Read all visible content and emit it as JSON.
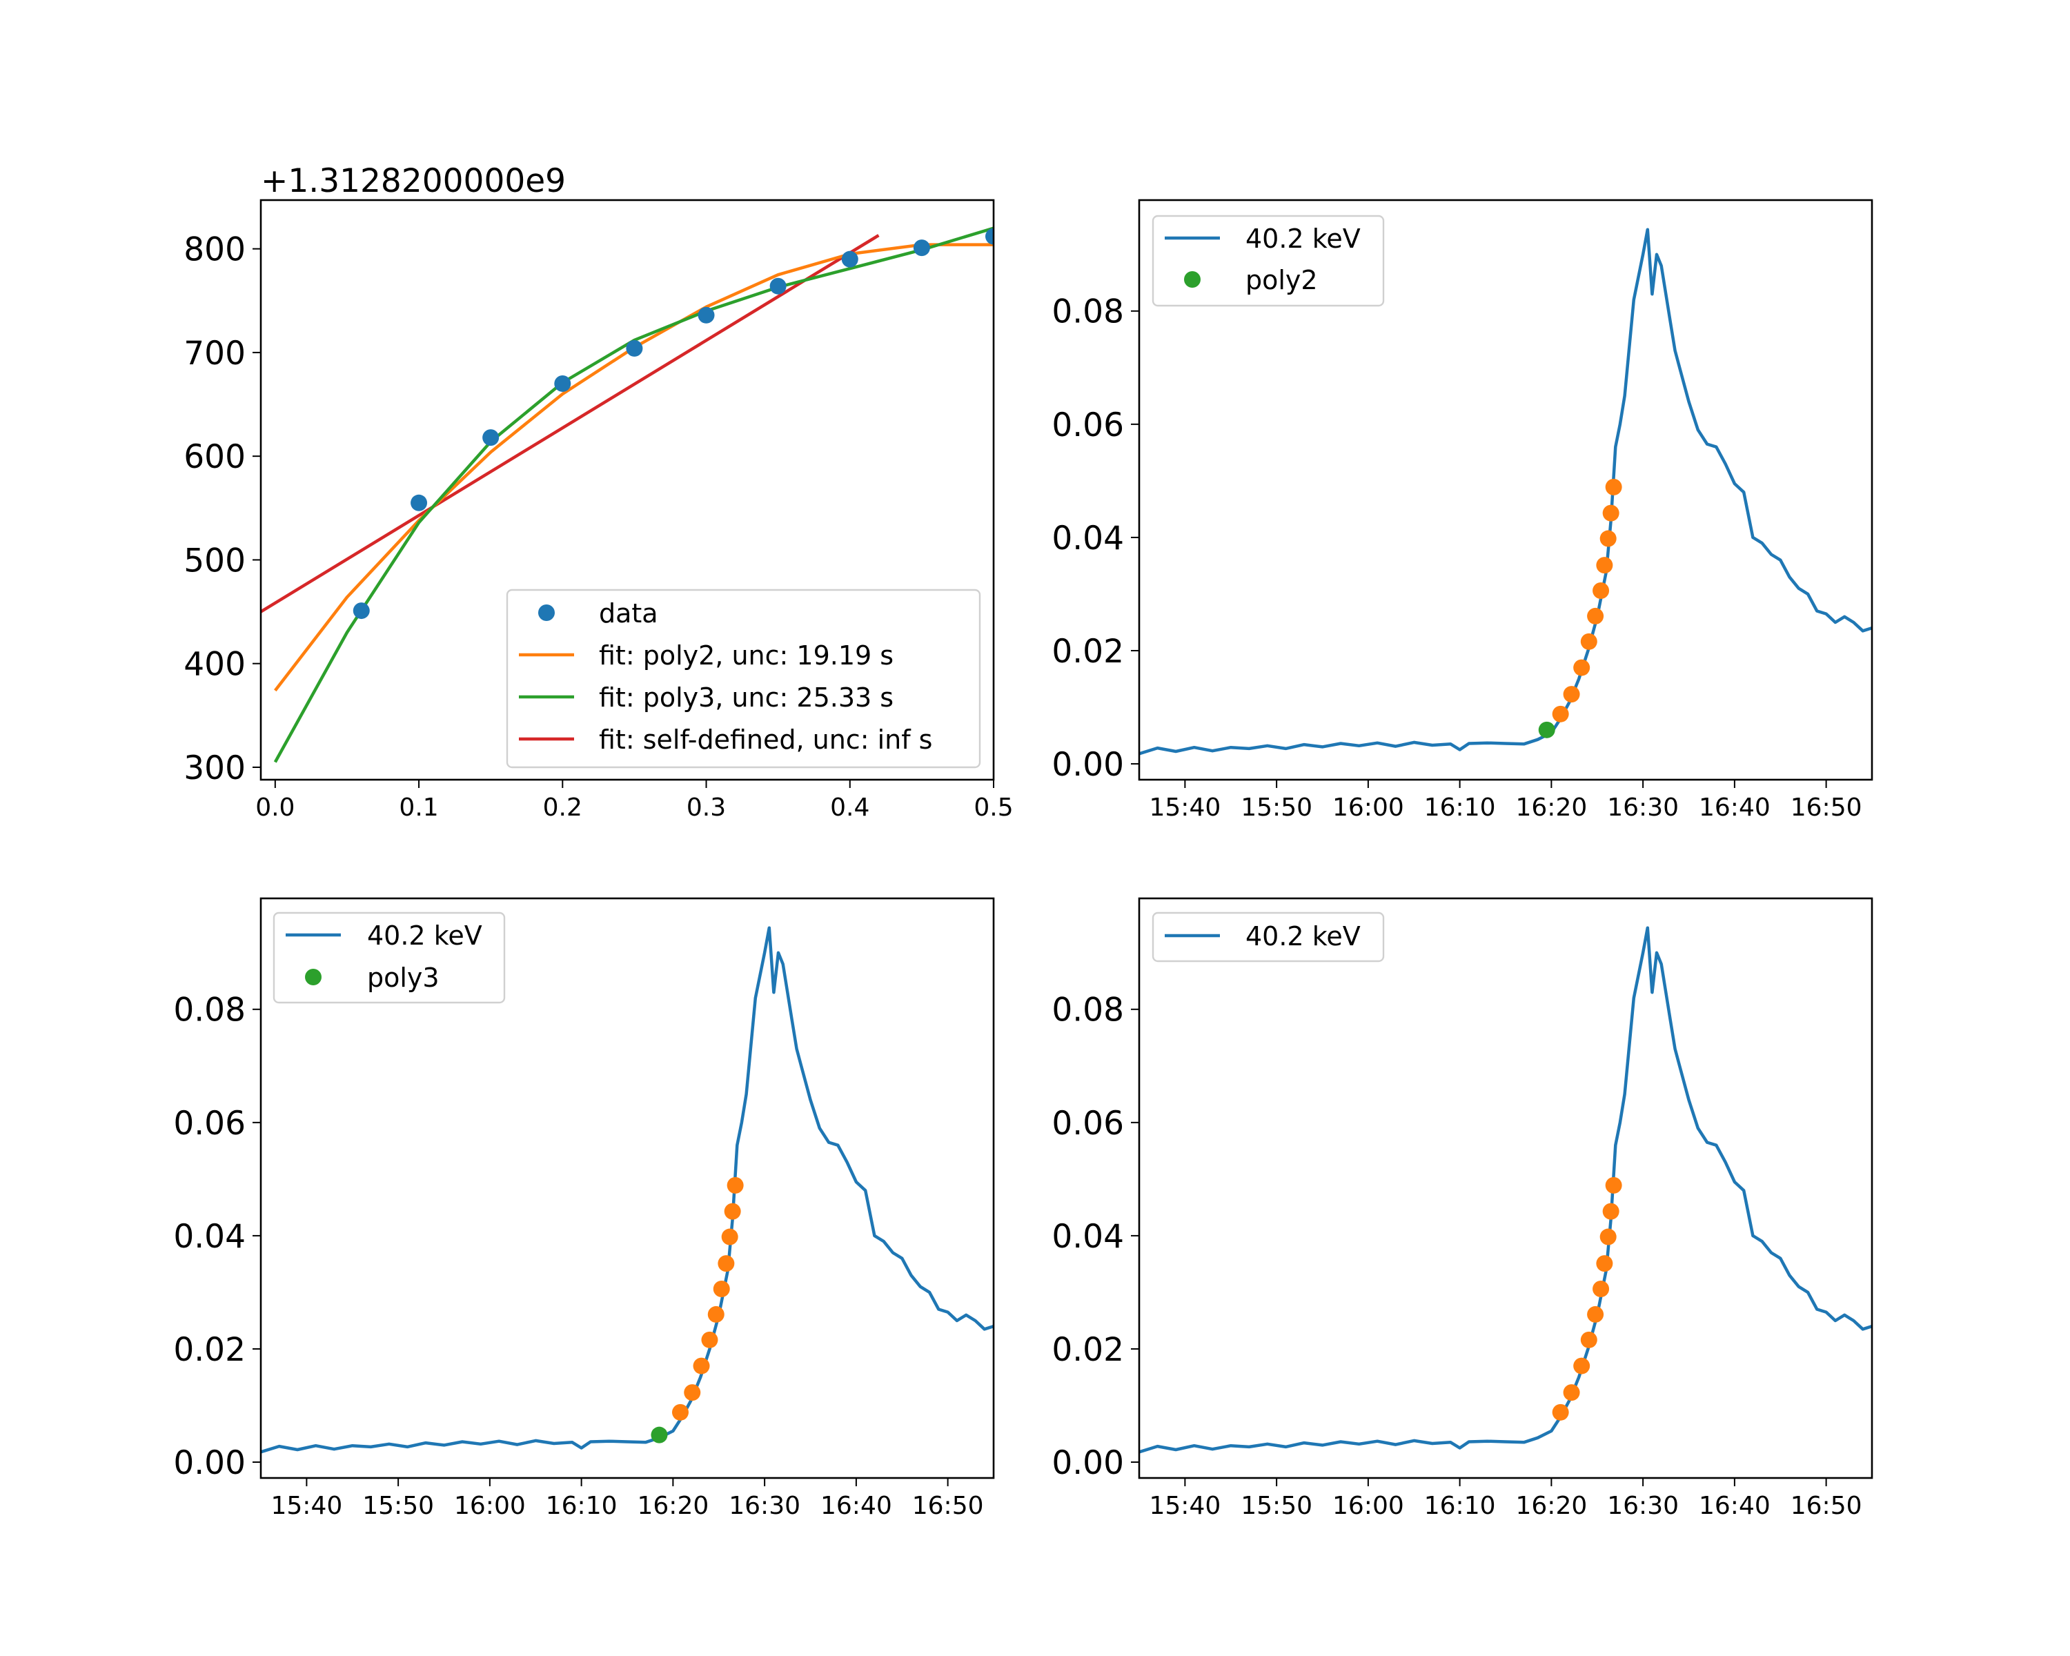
{
  "figure": {
    "background": "#ffffff"
  },
  "colors": {
    "blue": "#1f77b4",
    "orange": "#ff7f0e",
    "green": "#2ca02c",
    "red": "#d62728"
  },
  "chart_data": [
    {
      "type": "scatter",
      "offset_label": "+1.3128200000e9",
      "xlim": [
        -0.01,
        0.5
      ],
      "ylim": [
        288,
        847
      ],
      "xticks": [
        0.0,
        0.1,
        0.2,
        0.3,
        0.4,
        0.5
      ],
      "xtick_labels": [
        "0.0",
        "0.1",
        "0.2",
        "0.3",
        "0.4",
        "0.5"
      ],
      "yticks": [
        300,
        400,
        500,
        600,
        700,
        800
      ],
      "ytick_labels": [
        "300",
        "400",
        "500",
        "600",
        "700",
        "800"
      ],
      "legend_position": "lower right",
      "series": [
        {
          "name": "data",
          "kind": "points",
          "color": "#1f77b4",
          "x": [
            0.06,
            0.1,
            0.15,
            0.2,
            0.25,
            0.3,
            0.35,
            0.4,
            0.45,
            0.5
          ],
          "y": [
            451,
            555,
            618,
            670,
            704,
            736,
            764,
            790,
            801,
            812
          ]
        },
        {
          "name": "fit: poly2, unc: 19.19 s",
          "kind": "line",
          "color": "#ff7f0e",
          "x": [
            0.0,
            0.05,
            0.1,
            0.15,
            0.2,
            0.25,
            0.3,
            0.35,
            0.4,
            0.45,
            0.5
          ],
          "y": [
            374,
            464,
            538,
            604,
            660,
            705,
            744,
            775,
            795,
            804,
            804
          ]
        },
        {
          "name": "fit: poly3, unc: 25.33 s",
          "kind": "line",
          "color": "#2ca02c",
          "x": [
            0.0,
            0.05,
            0.1,
            0.15,
            0.2,
            0.25,
            0.3,
            0.35,
            0.4,
            0.45,
            0.5
          ],
          "y": [
            305,
            430,
            536,
            614,
            671,
            712,
            740,
            763,
            781,
            799,
            820
          ]
        },
        {
          "name": "fit: self-defined, unc: inf s",
          "kind": "line",
          "color": "#d62728",
          "x": [
            -0.01,
            0.42
          ],
          "y": [
            450,
            813
          ]
        }
      ]
    },
    {
      "type": "line",
      "xlim": [
        935,
        1015
      ],
      "ylim": [
        -0.0028,
        0.0996
      ],
      "xticks": [
        940,
        950,
        960,
        970,
        980,
        990,
        1000,
        1010
      ],
      "xtick_labels": [
        "15:40",
        "15:50",
        "16:00",
        "16:10",
        "16:20",
        "16:30",
        "16:40",
        "16:50"
      ],
      "yticks": [
        0.0,
        0.02,
        0.04,
        0.06,
        0.08
      ],
      "ytick_labels": [
        "0.00",
        "0.02",
        "0.04",
        "0.06",
        "0.08"
      ],
      "legend_position": "upper left",
      "legend": [
        "40.2 keV",
        "poly2"
      ],
      "fit_points": {
        "green": {
          "x": [
            979.5
          ],
          "y": [
            0.006
          ]
        },
        "orange": {
          "x": [
            981.0,
            982.2,
            983.3,
            984.1,
            984.8,
            985.4,
            985.8,
            986.2,
            986.5,
            986.8
          ],
          "y": [
            0.0088,
            0.0123,
            0.017,
            0.0216,
            0.0261,
            0.0306,
            0.0351,
            0.0398,
            0.0443,
            0.0489
          ]
        }
      }
    },
    {
      "type": "line",
      "xlim": [
        935,
        1015
      ],
      "ylim": [
        -0.0028,
        0.0996
      ],
      "xticks": [
        940,
        950,
        960,
        970,
        980,
        990,
        1000,
        1010
      ],
      "xtick_labels": [
        "15:40",
        "15:50",
        "16:00",
        "16:10",
        "16:20",
        "16:30",
        "16:40",
        "16:50"
      ],
      "yticks": [
        0.0,
        0.02,
        0.04,
        0.06,
        0.08
      ],
      "ytick_labels": [
        "0.00",
        "0.02",
        "0.04",
        "0.06",
        "0.08"
      ],
      "legend_position": "upper left",
      "legend": [
        "40.2 keV",
        "poly3"
      ],
      "fit_points": {
        "green": {
          "x": [
            978.5
          ],
          "y": [
            0.0048
          ]
        },
        "orange": {
          "x": [
            980.8,
            982.1,
            983.1,
            984.0,
            984.7,
            985.3,
            985.8,
            986.2,
            986.5,
            986.8
          ],
          "y": [
            0.0088,
            0.0123,
            0.017,
            0.0216,
            0.0261,
            0.0306,
            0.0351,
            0.0398,
            0.0443,
            0.0489
          ]
        }
      }
    },
    {
      "type": "line",
      "xlim": [
        935,
        1015
      ],
      "ylim": [
        -0.0028,
        0.0996
      ],
      "xticks": [
        940,
        950,
        960,
        970,
        980,
        990,
        1000,
        1010
      ],
      "xtick_labels": [
        "15:40",
        "15:50",
        "16:00",
        "16:10",
        "16:20",
        "16:30",
        "16:40",
        "16:50"
      ],
      "yticks": [
        0.0,
        0.02,
        0.04,
        0.06,
        0.08
      ],
      "ytick_labels": [
        "0.00",
        "0.02",
        "0.04",
        "0.06",
        "0.08"
      ],
      "legend_position": "upper left",
      "legend": [
        "40.2 keV"
      ],
      "fit_points": {
        "orange": {
          "x": [
            981.0,
            982.2,
            983.3,
            984.1,
            984.8,
            985.4,
            985.8,
            986.2,
            986.5,
            986.8
          ],
          "y": [
            0.0088,
            0.0123,
            0.017,
            0.0216,
            0.0261,
            0.0306,
            0.0351,
            0.0398,
            0.0443,
            0.0489
          ]
        }
      }
    }
  ],
  "lightcurve": {
    "name": "40.2 keV",
    "x_unit": "minutes after 00:00",
    "x": [
      935,
      937,
      939,
      941,
      943,
      945,
      947,
      949,
      951,
      953,
      955,
      957,
      959,
      961,
      963,
      965,
      967,
      969,
      970,
      971,
      973,
      975,
      977,
      978.5,
      980,
      981,
      982,
      983,
      984,
      985,
      986,
      986.5,
      987,
      987.5,
      988,
      989,
      990,
      990.5,
      991,
      991.5,
      992,
      992.5,
      993,
      993.5,
      994,
      995,
      996,
      997,
      998,
      999,
      1000,
      1001,
      1002,
      1003,
      1004,
      1005,
      1006,
      1007,
      1008,
      1009,
      1010,
      1011,
      1012,
      1013,
      1014,
      1015
    ],
    "y": [
      0.0018,
      0.0028,
      0.0022,
      0.0029,
      0.0023,
      0.0029,
      0.0027,
      0.0032,
      0.0027,
      0.0034,
      0.003,
      0.0036,
      0.0032,
      0.0037,
      0.0031,
      0.0038,
      0.0033,
      0.0035,
      0.0025,
      0.0036,
      0.0037,
      0.0036,
      0.0035,
      0.0043,
      0.0055,
      0.008,
      0.011,
      0.015,
      0.02,
      0.026,
      0.034,
      0.043,
      0.056,
      0.06,
      0.065,
      0.082,
      0.09,
      0.0944,
      0.083,
      0.09,
      0.088,
      0.083,
      0.078,
      0.073,
      0.07,
      0.064,
      0.059,
      0.0565,
      0.056,
      0.053,
      0.0495,
      0.048,
      0.04,
      0.039,
      0.037,
      0.036,
      0.033,
      0.031,
      0.03,
      0.027,
      0.0265,
      0.025,
      0.026,
      0.025,
      0.0235,
      0.024
    ]
  }
}
